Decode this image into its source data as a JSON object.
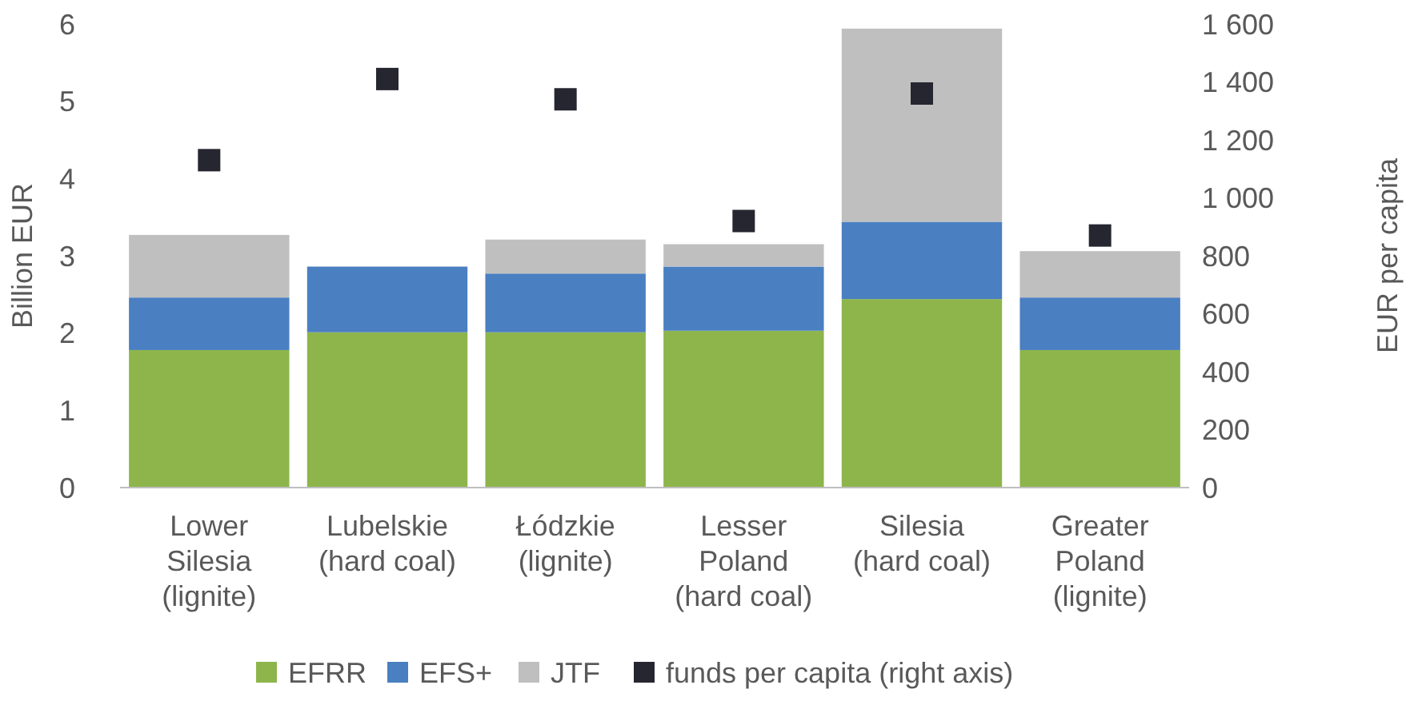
{
  "chart_data": {
    "type": "bar",
    "stacked": true,
    "ylabel": "Billion EUR",
    "y2label": "EUR per capita",
    "categories": [
      "Lower Silesia (lignite)",
      "Lubelskie (hard coal)",
      "Łódzkie (lignite)",
      "Lesser Poland (hard coal)",
      "Silesia (hard coal)",
      "Greater Poland (lignite)"
    ],
    "series": [
      {
        "name": "EFRR",
        "color": "#8db54b",
        "values": [
          1.78,
          2.01,
          2.01,
          2.03,
          2.44,
          1.78
        ]
      },
      {
        "name": "EFS+",
        "color": "#4a7fc1",
        "values": [
          0.68,
          0.85,
          0.76,
          0.83,
          1.0,
          0.68
        ]
      },
      {
        "name": "JTF",
        "color": "#bfbfbf",
        "values": [
          0.81,
          0,
          0.44,
          0.29,
          2.5,
          0.6
        ]
      },
      {
        "name": "funds per capita (right axis)",
        "type": "scatter",
        "axis": "y2",
        "marker": "square",
        "color": "#262630",
        "values": [
          1130,
          1410,
          1340,
          920,
          1360,
          870
        ]
      }
    ],
    "ylim": [
      0,
      6
    ],
    "yticks": [
      0,
      1,
      2,
      3,
      4,
      5,
      6
    ],
    "y2lim": [
      0,
      1600
    ],
    "y2ticks": [
      0,
      200,
      400,
      600,
      800,
      {
        "value": 1000,
        "label": "1 000"
      },
      {
        "value": 1200,
        "label": "1 200"
      },
      {
        "value": 1400,
        "label": "1 400"
      },
      {
        "value": 1600,
        "label": "1 600"
      }
    ],
    "grid": false,
    "legend": "bottom"
  }
}
